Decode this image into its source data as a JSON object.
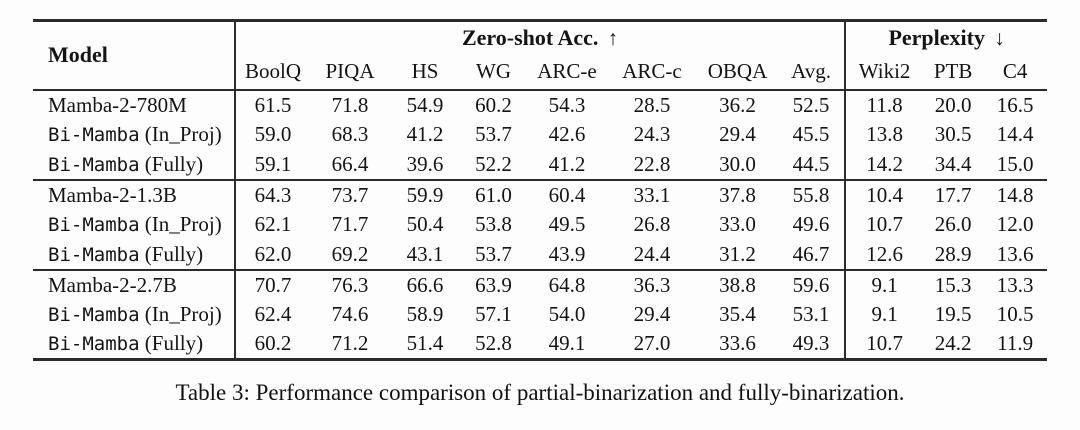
{
  "page": {
    "background": "#fdfdfd",
    "text_color": "#141414",
    "rule_color": "#2b2b2b"
  },
  "table": {
    "caption": "Table 3: Performance comparison of partial-binarization and fully-binarization.",
    "header": {
      "model_label": "Model",
      "group_headers": [
        {
          "label": "Zero-shot Acc.",
          "arrow": "↑",
          "span": 8
        },
        {
          "label": "Perplexity",
          "arrow": "↓",
          "span": 3
        }
      ],
      "columns": [
        "BoolQ",
        "PIQA",
        "HS",
        "WG",
        "ARC-e",
        "ARC-c",
        "OBQA",
        "Avg.",
        "Wiki2",
        "PTB",
        "C4"
      ]
    },
    "groups": [
      {
        "rows": [
          {
            "name_mono": "",
            "name_rest": "Mamba-2-780M",
            "values": [
              "61.5",
              "71.8",
              "54.9",
              "60.2",
              "54.3",
              "28.5",
              "36.2",
              "52.5",
              "11.8",
              "20.0",
              "16.5"
            ]
          },
          {
            "name_mono": "Bi-Mamba",
            "name_rest": " (In_Proj)",
            "values": [
              "59.0",
              "68.3",
              "41.2",
              "53.7",
              "42.6",
              "24.3",
              "29.4",
              "45.5",
              "13.8",
              "30.5",
              "14.4"
            ]
          },
          {
            "name_mono": "Bi-Mamba",
            "name_rest": " (Fully)",
            "values": [
              "59.1",
              "66.4",
              "39.6",
              "52.2",
              "41.2",
              "22.8",
              "30.0",
              "44.5",
              "14.2",
              "34.4",
              "15.0"
            ]
          }
        ]
      },
      {
        "rows": [
          {
            "name_mono": "",
            "name_rest": "Mamba-2-1.3B",
            "values": [
              "64.3",
              "73.7",
              "59.9",
              "61.0",
              "60.4",
              "33.1",
              "37.8",
              "55.8",
              "10.4",
              "17.7",
              "14.8"
            ]
          },
          {
            "name_mono": "Bi-Mamba",
            "name_rest": " (In_Proj)",
            "values": [
              "62.1",
              "71.7",
              "50.4",
              "53.8",
              "49.5",
              "26.8",
              "33.0",
              "49.6",
              "10.7",
              "26.0",
              "12.0"
            ]
          },
          {
            "name_mono": "Bi-Mamba",
            "name_rest": " (Fully)",
            "values": [
              "62.0",
              "69.2",
              "43.1",
              "53.7",
              "43.9",
              "24.4",
              "31.2",
              "46.7",
              "12.6",
              "28.9",
              "13.6"
            ]
          }
        ]
      },
      {
        "rows": [
          {
            "name_mono": "",
            "name_rest": "Mamba-2-2.7B",
            "values": [
              "70.7",
              "76.3",
              "66.6",
              "63.9",
              "64.8",
              "36.3",
              "38.8",
              "59.6",
              "9.1",
              "15.3",
              "13.3"
            ]
          },
          {
            "name_mono": "Bi-Mamba",
            "name_rest": " (In_Proj)",
            "values": [
              "62.4",
              "74.6",
              "58.9",
              "57.1",
              "54.0",
              "29.4",
              "35.4",
              "53.1",
              "9.1",
              "19.5",
              "10.5"
            ]
          },
          {
            "name_mono": "Bi-Mamba",
            "name_rest": " (Fully)",
            "values": [
              "60.2",
              "71.2",
              "51.4",
              "52.8",
              "49.1",
              "27.0",
              "33.6",
              "49.3",
              "10.7",
              "24.2",
              "11.9"
            ]
          }
        ]
      }
    ]
  }
}
